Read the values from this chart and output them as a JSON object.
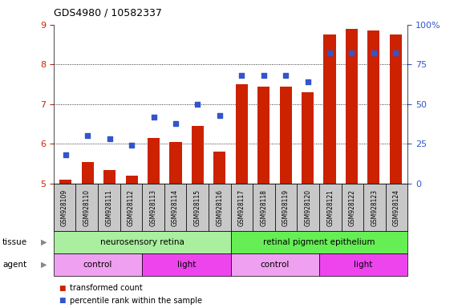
{
  "title": "GDS4980 / 10582337",
  "samples": [
    "GSM928109",
    "GSM928110",
    "GSM928111",
    "GSM928112",
    "GSM928113",
    "GSM928114",
    "GSM928115",
    "GSM928116",
    "GSM928117",
    "GSM928118",
    "GSM928119",
    "GSM928120",
    "GSM928121",
    "GSM928122",
    "GSM928123",
    "GSM928124"
  ],
  "transformed_count": [
    5.1,
    5.55,
    5.35,
    5.2,
    6.15,
    6.05,
    6.45,
    5.8,
    7.5,
    7.45,
    7.45,
    7.3,
    8.75,
    8.9,
    8.85,
    8.75
  ],
  "percentile_rank": [
    18,
    30,
    28,
    24,
    42,
    38,
    50,
    43,
    68,
    68,
    68,
    64,
    82,
    82,
    82,
    82
  ],
  "ylim_left": [
    5,
    9
  ],
  "ylim_right": [
    0,
    100
  ],
  "yticks_left": [
    5,
    6,
    7,
    8,
    9
  ],
  "yticks_right": [
    0,
    25,
    50,
    75,
    100
  ],
  "ytick_labels_right": [
    "0",
    "25",
    "50",
    "75",
    "100%"
  ],
  "bar_color": "#cc2200",
  "dot_color": "#3355cc",
  "tissue_groups": [
    {
      "label": "neurosensory retina",
      "start": 0,
      "end": 8,
      "color": "#aaeea0"
    },
    {
      "label": "retinal pigment epithelium",
      "start": 8,
      "end": 16,
      "color": "#66ee55"
    }
  ],
  "agent_groups": [
    {
      "label": "control",
      "start": 0,
      "end": 4,
      "color": "#f0a0f0"
    },
    {
      "label": "light",
      "start": 4,
      "end": 8,
      "color": "#ee44ee"
    },
    {
      "label": "control",
      "start": 8,
      "end": 12,
      "color": "#f0a0f0"
    },
    {
      "label": "light",
      "start": 12,
      "end": 16,
      "color": "#ee44ee"
    }
  ],
  "legend_items": [
    {
      "label": "transformed count",
      "color": "#cc2200"
    },
    {
      "label": "percentile rank within the sample",
      "color": "#3355cc"
    }
  ],
  "xtick_bg_color": "#c8c8c8",
  "xtick_border_color": "#888888"
}
